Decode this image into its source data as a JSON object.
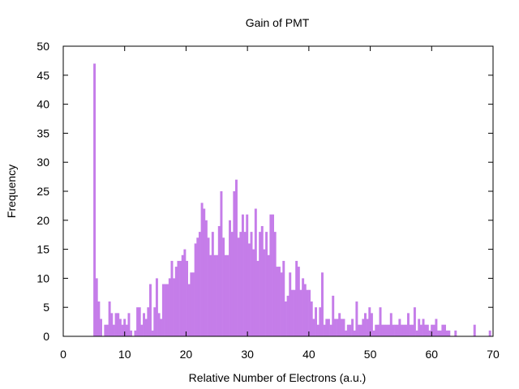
{
  "chart_data": {
    "type": "bar",
    "title": "Gain of PMT",
    "xlabel": "Relative Number of Electrons (a.u.)",
    "ylabel": "Frequency",
    "xlim": [
      0,
      70
    ],
    "ylim": [
      0,
      50
    ],
    "xticks": [
      0,
      10,
      20,
      30,
      40,
      50,
      60,
      70
    ],
    "yticks": [
      0,
      5,
      10,
      15,
      20,
      25,
      30,
      35,
      40,
      45,
      50
    ],
    "grid": false,
    "legend": "none",
    "bar_color": "#c57de9",
    "bin_width": 0.35,
    "bin_start": 4.9,
    "series": [
      {
        "values": [
          47,
          10,
          6,
          3,
          0,
          2,
          2,
          6,
          4,
          2,
          4,
          4,
          3,
          2,
          3,
          2,
          4,
          1,
          0,
          1,
          5,
          5,
          2,
          4,
          3,
          5,
          9,
          1,
          5,
          10,
          4,
          3,
          9,
          9,
          9,
          10,
          13,
          10,
          12,
          13,
          13,
          14,
          15,
          13,
          9,
          11,
          11,
          16,
          17,
          18,
          23,
          22,
          20,
          17,
          14,
          18,
          14,
          14,
          19,
          25,
          17,
          14,
          14,
          20,
          18,
          25,
          27,
          17,
          18,
          21,
          18,
          21,
          16,
          18,
          15,
          22,
          13,
          18,
          19,
          15,
          18,
          14,
          21,
          21,
          18,
          12,
          12,
          11,
          13,
          6,
          7,
          11,
          8,
          8,
          13,
          12,
          8,
          10,
          9,
          8,
          8,
          6,
          3,
          5,
          2,
          5,
          11,
          2,
          3,
          3,
          2,
          7,
          3,
          3,
          4,
          3,
          3,
          1,
          2,
          2,
          3,
          1,
          6,
          2,
          2,
          3,
          4,
          3,
          5,
          4,
          1,
          2,
          2,
          5,
          2,
          2,
          2,
          2,
          4,
          2,
          2,
          2,
          3,
          2,
          2,
          2,
          4,
          2,
          2,
          5,
          1,
          3,
          2,
          3,
          2,
          2,
          1,
          2,
          2,
          3,
          1,
          1,
          2,
          2,
          1,
          1,
          0,
          0,
          1
        ]
      }
    ],
    "sparse_bins": [
      {
        "x": 60.5,
        "value": 1
      },
      {
        "x": 66.8,
        "value": 2
      },
      {
        "x": 69.3,
        "value": 1
      }
    ]
  }
}
